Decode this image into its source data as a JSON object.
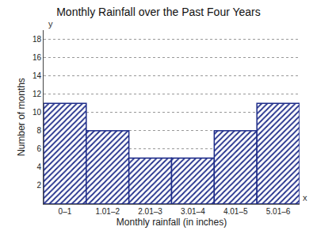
{
  "chart_data": {
    "type": "bar",
    "title": "Monthly Rainfall over the Past Four Years",
    "x_label": "Monthly rainfall (in inches)",
    "y_label": "Number of months",
    "categories": [
      "0–1",
      "1.01–2",
      "2.01–3",
      "3.01–4",
      "4.01–5",
      "5.01–6"
    ],
    "values": [
      11,
      8,
      5,
      5,
      8,
      11
    ],
    "color": "#1f2d8a",
    "ylim": [
      0,
      19
    ],
    "yticks": [
      2,
      4,
      6,
      8,
      10,
      12,
      14,
      16,
      18
    ],
    "grid": true,
    "annotations": [
      "y",
      "x"
    ]
  }
}
